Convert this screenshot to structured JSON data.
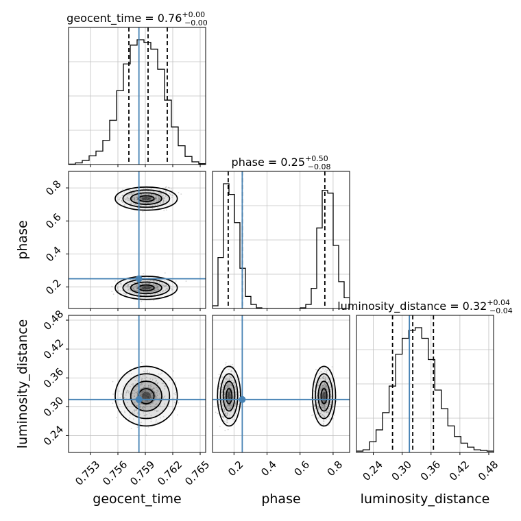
{
  "chart_data": {
    "type": "corner",
    "parameters": [
      "geocent_time",
      "phase",
      "luminosity_distance"
    ],
    "truths": {
      "geocent_time": 0.7583,
      "phase": 0.25,
      "luminosity_distance": 0.315
    },
    "colors": {
      "truth": "#4682b4",
      "contour": "#000000",
      "grid": "#c0c0c0",
      "points": "#a0a0a0"
    },
    "titles": [
      {
        "param": "geocent_time",
        "name": "geocent_time",
        "median": "0.76",
        "plus": "+0.00",
        "minus": "−0.00"
      },
      {
        "param": "phase",
        "name": "phase",
        "median": "0.25",
        "plus": "+0.50",
        "minus": "−0.08"
      },
      {
        "param": "luminosity_distance",
        "name": "luminosity_distance",
        "median": "0.32",
        "plus": "+0.04",
        "minus": "−0.04"
      }
    ],
    "quantiles": {
      "geocent_time": [
        0.7572,
        0.7593,
        0.7614
      ],
      "phase": [
        0.165,
        0.25,
        0.75
      ],
      "luminosity_distance": [
        0.28,
        0.322,
        0.365
      ]
    },
    "ranges": {
      "geocent_time": [
        0.7506,
        0.7656
      ],
      "phase": [
        0.07,
        0.9
      ],
      "luminosity_distance": [
        0.205,
        0.49
      ]
    },
    "ticks": {
      "geocent_time": [
        0.753,
        0.756,
        0.759,
        0.762,
        0.765
      ],
      "phase": [
        0.2,
        0.4,
        0.6,
        0.8
      ],
      "luminosity_distance": [
        0.24,
        0.3,
        0.36,
        0.42,
        0.48
      ]
    },
    "tick_labels": {
      "geocent_time": [
        "0.753",
        "0.756",
        "0.759",
        "0.762",
        "0.765"
      ],
      "phase": [
        "0.2",
        "0.4",
        "0.6",
        "0.8"
      ],
      "luminosity_distance": [
        "0.24",
        "0.30",
        "0.36",
        "0.42",
        "0.48"
      ]
    },
    "histograms": {
      "geocent_time": {
        "start": 0.7506,
        "end": 0.7656,
        "counts": [
          0.3,
          1.2,
          3.0,
          6.5,
          10,
          18,
          33,
          55,
          75,
          89,
          93,
          91,
          86,
          71,
          48,
          28,
          14,
          6,
          2,
          0.6
        ]
      },
      "phase": {
        "start": 0.07,
        "end": 0.9,
        "counts": [
          2,
          38,
          93,
          85,
          64,
          30,
          9,
          3,
          0.5,
          0,
          0,
          0,
          0,
          0,
          0,
          0,
          0.5,
          3,
          15,
          60,
          88,
          86,
          47,
          20,
          8
        ]
      },
      "luminosity_distance": {
        "start": 0.205,
        "end": 0.49,
        "counts": [
          1,
          2,
          8,
          17,
          30,
          50,
          74,
          86,
          92,
          94,
          86,
          70,
          47,
          33,
          20,
          12,
          7,
          4,
          2,
          1.5,
          1
        ]
      }
    },
    "clusters": [
      {
        "x": "geocent_time",
        "y": "phase",
        "blobs": [
          {
            "mx": 0.7591,
            "my": 0.735,
            "sx": 0.0017,
            "sy": 0.035,
            "w": 1
          },
          {
            "mx": 0.7591,
            "my": 0.195,
            "sx": 0.0017,
            "sy": 0.035,
            "w": 1
          }
        ]
      },
      {
        "x": "geocent_time",
        "y": "luminosity_distance",
        "blobs": [
          {
            "mx": 0.7591,
            "my": 0.322,
            "sx": 0.0017,
            "sy": 0.031,
            "w": 1
          }
        ]
      },
      {
        "x": "phase",
        "y": "luminosity_distance",
        "blobs": [
          {
            "mx": 0.17,
            "my": 0.322,
            "sx": 0.035,
            "sy": 0.031,
            "w": 1
          },
          {
            "mx": 0.745,
            "my": 0.322,
            "sx": 0.035,
            "sy": 0.031,
            "w": 1
          }
        ]
      }
    ],
    "axis_labels": {
      "x": [
        "geocent_time",
        "phase",
        "luminosity_distance"
      ],
      "y": [
        "phase",
        "luminosity_distance"
      ]
    },
    "grid": true
  }
}
